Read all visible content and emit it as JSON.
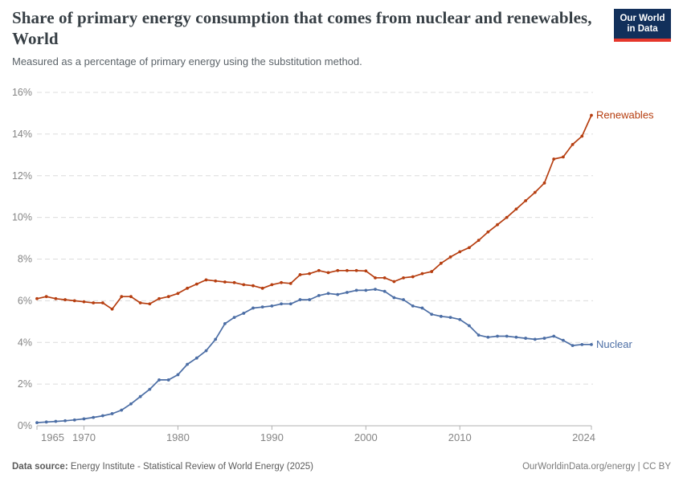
{
  "header": {
    "title": "Share of primary energy consumption that comes from nuclear and renewables, World",
    "subtitle": "Measured as a percentage of primary energy using the substitution method.",
    "logo": {
      "line1": "Our World",
      "line2": "in Data",
      "bg_color": "#12305b",
      "accent_color": "#e5362b"
    }
  },
  "chart_data": {
    "type": "line",
    "title": "Share of primary energy consumption that comes from nuclear and renewables, World",
    "xlabel": "",
    "ylabel": "",
    "ylim": [
      0,
      16
    ],
    "yticks": [
      0,
      2,
      4,
      6,
      8,
      10,
      12,
      14,
      16
    ],
    "ytick_suffix": "%",
    "xticks": [
      1965,
      1970,
      1980,
      1990,
      2000,
      2010,
      2024
    ],
    "grid": "horizontal-dashed",
    "legend_position": "end-of-line-labels",
    "x": [
      1965,
      1966,
      1967,
      1968,
      1969,
      1970,
      1971,
      1972,
      1973,
      1974,
      1975,
      1976,
      1977,
      1978,
      1979,
      1980,
      1981,
      1982,
      1983,
      1984,
      1985,
      1986,
      1987,
      1988,
      1989,
      1990,
      1991,
      1992,
      1993,
      1994,
      1995,
      1996,
      1997,
      1998,
      1999,
      2000,
      2001,
      2002,
      2003,
      2004,
      2005,
      2006,
      2007,
      2008,
      2009,
      2010,
      2011,
      2012,
      2013,
      2014,
      2015,
      2016,
      2017,
      2018,
      2019,
      2020,
      2021,
      2022,
      2023,
      2024
    ],
    "series": [
      {
        "name": "Renewables",
        "color": "#b63e10",
        "values": [
          6.1,
          6.2,
          6.1,
          6.05,
          6.0,
          5.95,
          5.9,
          5.9,
          5.6,
          6.2,
          6.2,
          5.9,
          5.85,
          6.1,
          6.2,
          6.35,
          6.6,
          6.8,
          7.0,
          6.95,
          6.9,
          6.87,
          6.77,
          6.72,
          6.6,
          6.77,
          6.87,
          6.83,
          7.25,
          7.3,
          7.45,
          7.35,
          7.45,
          7.45,
          7.45,
          7.43,
          7.1,
          7.1,
          6.92,
          7.1,
          7.15,
          7.3,
          7.4,
          7.8,
          8.1,
          8.35,
          8.55,
          8.9,
          9.3,
          9.65,
          10.0,
          10.4,
          10.8,
          11.2,
          11.65,
          12.8,
          12.9,
          13.5,
          13.9,
          14.9
        ]
      },
      {
        "name": "Nuclear",
        "color": "#4c6ea5",
        "values": [
          0.15,
          0.18,
          0.21,
          0.24,
          0.28,
          0.33,
          0.4,
          0.48,
          0.58,
          0.75,
          1.05,
          1.4,
          1.75,
          2.2,
          2.2,
          2.45,
          2.95,
          3.25,
          3.6,
          4.15,
          4.9,
          5.2,
          5.4,
          5.65,
          5.7,
          5.75,
          5.85,
          5.85,
          6.05,
          6.05,
          6.25,
          6.35,
          6.3,
          6.4,
          6.5,
          6.5,
          6.55,
          6.45,
          6.15,
          6.05,
          5.75,
          5.65,
          5.35,
          5.25,
          5.2,
          5.1,
          4.8,
          4.35,
          4.25,
          4.3,
          4.3,
          4.25,
          4.2,
          4.15,
          4.2,
          4.3,
          4.1,
          3.85,
          3.9,
          3.9
        ]
      }
    ],
    "style": {
      "grid_color": "#dcdcdc",
      "axis_color": "#b0b0b0",
      "tick_label_color": "#858585"
    }
  },
  "footer": {
    "source_label": "Data source:",
    "source_text": " Energy Institute - Statistical Review of World Energy (2025)",
    "right_text": "OurWorldinData.org/energy | CC BY"
  }
}
